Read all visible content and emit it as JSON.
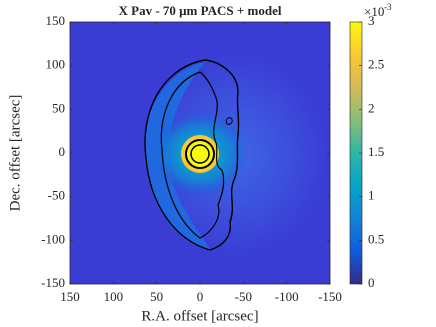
{
  "chart_data": {
    "type": "image",
    "title": "X Pav - 70 μm PACS + model",
    "x_label": "R.A. offset [arcsec]",
    "y_label": "Dec. offset [arcsec]",
    "xlim": [
      150,
      -150
    ],
    "xticks": [
      150,
      100,
      50,
      0,
      -50,
      -100,
      -150
    ],
    "ylim": [
      -150,
      150
    ],
    "yticks": [
      150,
      100,
      50,
      0,
      -50,
      -100,
      -150
    ],
    "colorbar": {
      "clim": [
        0,
        3
      ],
      "ticks": [
        0,
        0.5,
        1,
        1.5,
        2,
        2.5,
        3
      ],
      "scale_base": "×10",
      "scale_exponent": "-3",
      "colormap": [
        "#352a87",
        "#0f5cdd",
        "#1481d6",
        "#06a4ca",
        "#2eb7a4",
        "#87bf77",
        "#d1bb59",
        "#fec832",
        "#f9fb0e"
      ]
    }
  }
}
